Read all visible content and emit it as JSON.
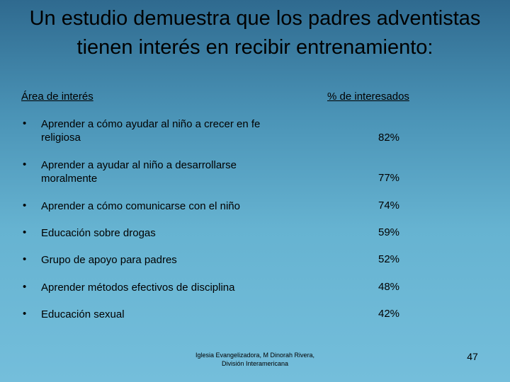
{
  "title": "Un estudio demuestra que los padres adventistas tienen interés en recibir entrenamiento:",
  "headers": {
    "area": "Área de interés",
    "percent": "% de interesados"
  },
  "bullet": "•",
  "rows": [
    {
      "label": "Aprender a cómo ayudar al niño a crecer en fe religiosa",
      "percent": "82%"
    },
    {
      "label": "Aprender a ayudar al niño a desarrollarse moralmente",
      "percent": "77%"
    },
    {
      "label": "Aprender a cómo comunicarse con el niño",
      "percent": "74%"
    },
    {
      "label": "Educación sobre drogas",
      "percent": "59%"
    },
    {
      "label": "Grupo de apoyo para padres",
      "percent": "52%"
    },
    {
      "label": "Aprender métodos efectivos de disciplina",
      "percent": "48%"
    },
    {
      "label": "Educación sexual",
      "percent": "42%"
    }
  ],
  "footer": "Iglesia Evangelizadora, M Dinorah Rivera, División Interamericana",
  "page_number": "47"
}
